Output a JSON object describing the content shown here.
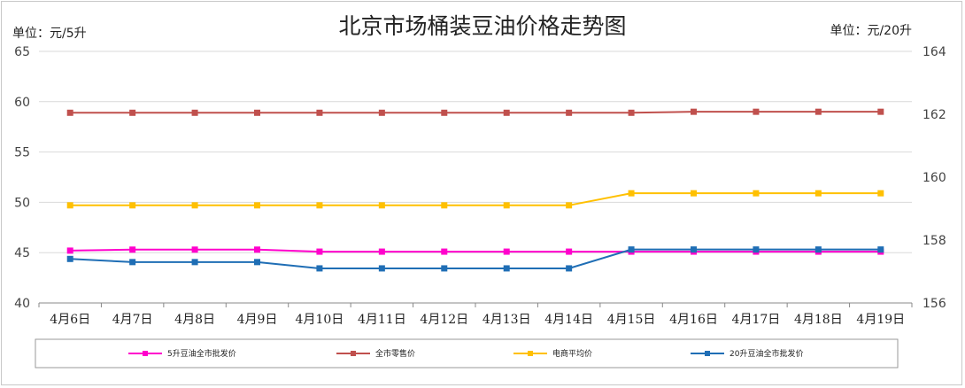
{
  "chart_data": {
    "type": "line",
    "title": "北京市场桶装豆油价格走势图",
    "ylabel": "单位：元/5升",
    "y2label": "单位：元/20升",
    "ylim": [
      40,
      65
    ],
    "yticks": [
      40,
      45,
      50,
      55,
      60,
      65
    ],
    "y2lim": [
      156,
      164
    ],
    "y2ticks": [
      156,
      158,
      160,
      162,
      164
    ],
    "grid": true,
    "legend_position": "bottom",
    "categories": [
      "4月6日",
      "4月7日",
      "4月8日",
      "4月9日",
      "4月10日",
      "4月11日",
      "4月12日",
      "4月13日",
      "4月14日",
      "4月15日",
      "4月16日",
      "4月17日",
      "4月18日",
      "4月19日"
    ],
    "series": [
      {
        "name": "5升豆油全市批发价",
        "axis": "left",
        "color": "#ff00cc",
        "values": [
          45.2,
          45.3,
          45.3,
          45.3,
          45.1,
          45.1,
          45.1,
          45.1,
          45.1,
          45.1,
          45.1,
          45.1,
          45.1,
          45.1
        ]
      },
      {
        "name": "全市零售价",
        "axis": "left",
        "color": "#c0504d",
        "values": [
          58.9,
          58.9,
          58.9,
          58.9,
          58.9,
          58.9,
          58.9,
          58.9,
          58.9,
          58.9,
          59.0,
          59.0,
          59.0,
          59.0
        ]
      },
      {
        "name": "电商平均价",
        "axis": "left",
        "color": "#ffc000",
        "values": [
          49.7,
          49.7,
          49.7,
          49.7,
          49.7,
          49.7,
          49.7,
          49.7,
          49.7,
          50.9,
          50.9,
          50.9,
          50.9,
          50.9
        ]
      },
      {
        "name": "20升豆油全市批发价",
        "axis": "right",
        "color": "#1f6eb5",
        "values": [
          157.4,
          157.3,
          157.3,
          157.3,
          157.1,
          157.1,
          157.1,
          157.1,
          157.1,
          157.7,
          157.7,
          157.7,
          157.7,
          157.7
        ]
      }
    ]
  }
}
